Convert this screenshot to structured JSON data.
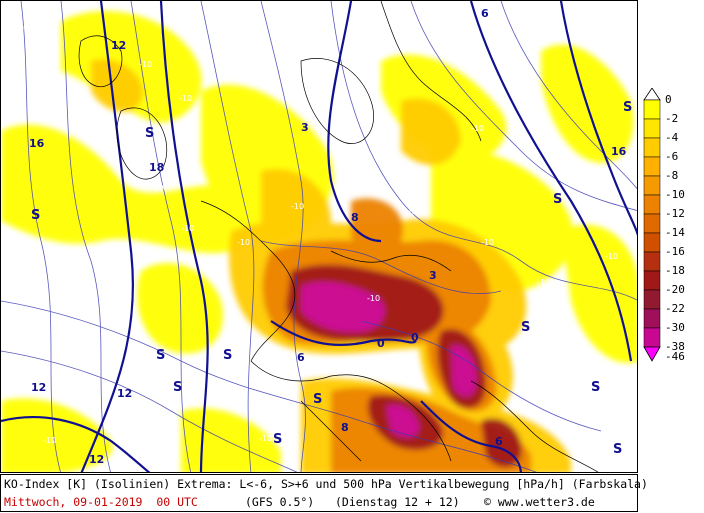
{
  "caption": {
    "line1": "KO-Index [K] (Isolinien) Extrema: L<-6, S>+6 und 500 hPa Vertikalbewegung [hPa/h] (Farbskala)",
    "date": "Mittwoch, 09-01-2019  00 UTC",
    "model": "(GFS 0.5°)   (Dienstag 12 + 12)",
    "copyright": "© www.wetter3.de"
  },
  "legend": {
    "levels": [
      "0",
      "-2",
      "-4",
      "-6",
      "-8",
      "-10",
      "-12",
      "-14",
      "-16",
      "-18",
      "-20",
      "-22",
      "-30",
      "-38",
      "-46"
    ],
    "colors": [
      "#ffffff",
      "#ffff00",
      "#ffe600",
      "#ffcc00",
      "#ffb000",
      "#f59a00",
      "#ec8200",
      "#e06a00",
      "#d05000",
      "#b43010",
      "#a01818",
      "#921a30",
      "#a0105a",
      "#c80890",
      "#ff00ff"
    ]
  },
  "map": {
    "extrema_labels": [
      {
        "id": "s1",
        "text": "S"
      },
      {
        "id": "s2",
        "text": "S"
      },
      {
        "id": "s3",
        "text": "S"
      },
      {
        "id": "s4",
        "text": "S"
      },
      {
        "id": "s5",
        "text": "S"
      },
      {
        "id": "s6",
        "text": "S"
      },
      {
        "id": "s7",
        "text": "S"
      },
      {
        "id": "s8",
        "text": "S"
      },
      {
        "id": "s9",
        "text": "S"
      },
      {
        "id": "s10",
        "text": "S"
      },
      {
        "id": "s11",
        "text": "S"
      },
      {
        "id": "s12",
        "text": "S"
      }
    ],
    "isoline_labels": [
      "12",
      "18",
      "16",
      "6",
      "8",
      "0",
      "0",
      "12",
      "12",
      "8",
      "6",
      "12",
      "3",
      "3",
      "6",
      "16"
    ],
    "vertical_motion_labels": [
      "-10",
      "-10",
      "-10",
      "-10",
      "-10",
      "-10",
      "-10",
      "-10",
      "-10",
      "-10",
      "-10",
      "-10",
      "-10",
      "-10",
      "-10",
      "-10"
    ]
  }
}
